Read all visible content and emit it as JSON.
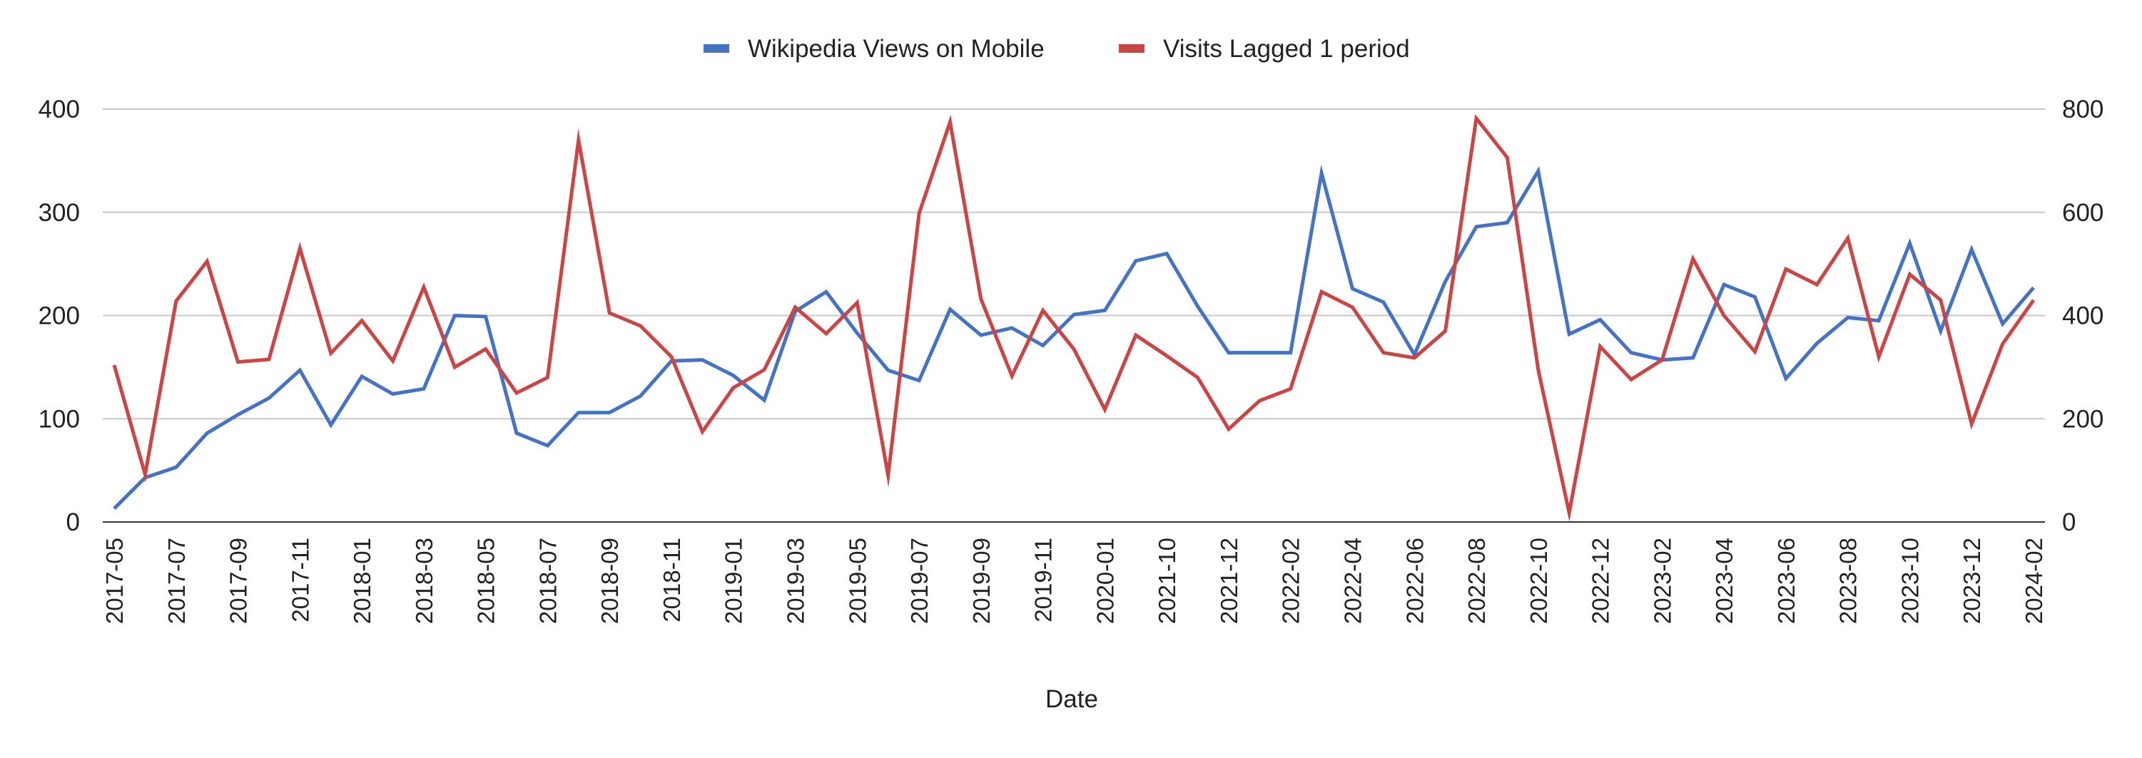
{
  "chart_data": {
    "type": "line",
    "title": "",
    "xlabel": "Date",
    "ylabel_left": "",
    "ylabel_right": "",
    "left_axis": {
      "min": 0,
      "max": 400,
      "ticks": [
        0,
        100,
        200,
        300,
        400
      ]
    },
    "right_axis": {
      "min": 0,
      "max": 800,
      "ticks": [
        0,
        200,
        400,
        600,
        800
      ]
    },
    "grid": true,
    "legend_position": "top-center",
    "x_tick_labels": [
      "2017-05",
      "2017-07",
      "2017-09",
      "2017-11",
      "2018-01",
      "2018-03",
      "2018-05",
      "2018-07",
      "2018-09",
      "2018-11",
      "2019-01",
      "2019-03",
      "2019-05",
      "2019-07",
      "2019-09",
      "2019-11",
      "2020-01",
      "2021-10",
      "2021-12",
      "2022-02",
      "2022-04",
      "2022-06",
      "2022-08",
      "2022-10",
      "2022-12",
      "2023-02",
      "2023-04",
      "2023-06",
      "2023-08",
      "2023-10",
      "2023-12",
      "2024-02"
    ],
    "points_count": 63,
    "series": [
      {
        "name": "Wikipedia Views on Mobile",
        "axis": "left",
        "color": "#4472c4",
        "values": [
          13,
          43,
          53,
          86,
          104,
          120,
          147,
          94,
          141,
          124,
          129,
          200,
          199,
          86,
          74,
          106,
          106,
          122,
          156,
          157,
          142,
          118,
          204,
          223,
          183,
          147,
          137,
          206,
          181,
          188,
          171,
          201,
          205,
          253,
          260,
          209,
          164,
          164,
          164,
          338,
          226,
          213,
          162,
          233,
          286,
          290,
          340,
          182,
          196,
          164,
          157,
          159,
          230,
          218,
          139,
          173,
          198,
          195,
          270,
          185,
          264,
          192,
          227
        ],
        "tick_every": 2
      },
      {
        "name": "Visits Lagged 1 period",
        "axis": "right",
        "color": "#cc4444",
        "values": [
          304,
          92,
          428,
          505,
          310,
          315,
          530,
          327,
          390,
          312,
          455,
          300,
          335,
          250,
          280,
          740,
          405,
          380,
          320,
          175,
          260,
          295,
          416,
          365,
          425,
          90,
          598,
          775,
          432,
          283,
          410,
          335,
          218,
          362,
          322,
          280,
          180,
          235,
          258,
          446,
          416,
          328,
          318,
          370,
          782,
          706,
          295,
          18,
          340,
          276,
          314,
          510,
          400,
          330,
          490,
          460,
          550,
          320,
          480,
          430,
          190,
          345,
          430
        ]
      }
    ]
  }
}
